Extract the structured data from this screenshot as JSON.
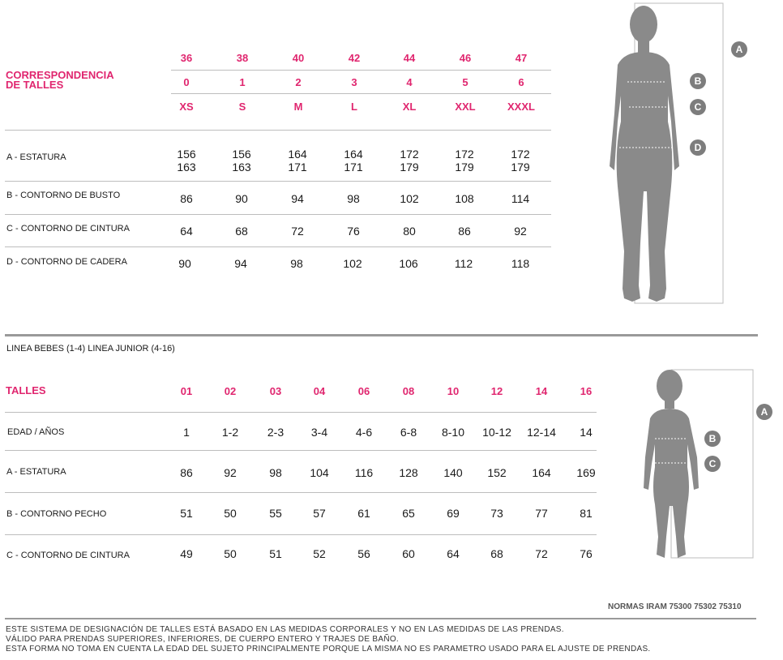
{
  "adult": {
    "title_line1": "CORRESPONDENCIA",
    "title_line2": "DE TALLES",
    "sizes_num": [
      "36",
      "38",
      "40",
      "42",
      "44",
      "46",
      "47"
    ],
    "sizes_idx": [
      "0",
      "1",
      "2",
      "3",
      "4",
      "5",
      "6"
    ],
    "sizes_letter": [
      "XS",
      "S",
      "M",
      "L",
      "XL",
      "XXL",
      "XXXL"
    ],
    "rows": [
      {
        "label": "A - ESTATURA",
        "values": [
          [
            "156",
            "163"
          ],
          [
            "156",
            "163"
          ],
          [
            "164",
            "171"
          ],
          [
            "164",
            "171"
          ],
          [
            "172",
            "179"
          ],
          [
            "172",
            "179"
          ],
          [
            "172",
            "179"
          ]
        ]
      },
      {
        "label": "B - CONTORNO DE BUSTO",
        "values": [
          "86",
          "90",
          "94",
          "98",
          "102",
          "108",
          "114"
        ]
      },
      {
        "label": "C - CONTORNO DE CINTURA",
        "values": [
          "64",
          "68",
          "72",
          "76",
          "80",
          "86",
          "92"
        ]
      },
      {
        "label": "D - CONTORNO DE CADERA",
        "values": [
          "90",
          "94",
          "98",
          "102",
          "106",
          "112",
          "118"
        ]
      }
    ],
    "badges": [
      "A",
      "B",
      "C",
      "D"
    ]
  },
  "kids": {
    "lines_caption": "LINEA BEBES (1-4)  LINEA JUNIOR (4-16)",
    "title": "TALLES",
    "sizes": [
      "01",
      "02",
      "03",
      "04",
      "06",
      "08",
      "10",
      "12",
      "14",
      "16"
    ],
    "rows": [
      {
        "label": "EDAD / AÑOS",
        "values": [
          "1",
          "1-2",
          "2-3",
          "3-4",
          "4-6",
          "6-8",
          "8-10",
          "10-12",
          "12-14",
          "14"
        ]
      },
      {
        "label": "A - ESTATURA",
        "values": [
          "86",
          "92",
          "98",
          "104",
          "116",
          "128",
          "140",
          "152",
          "164",
          "169"
        ]
      },
      {
        "label": "B - CONTORNO PECHO",
        "values": [
          "51",
          "50",
          "55",
          "57",
          "61",
          "65",
          "69",
          "73",
          "77",
          "81"
        ]
      },
      {
        "label": "C - CONTORNO DE CINTURA",
        "values": [
          "49",
          "50",
          "51",
          "52",
          "56",
          "60",
          "64",
          "68",
          "72",
          "76"
        ]
      }
    ],
    "badges": [
      "A",
      "B",
      "C"
    ]
  },
  "norms": "NORMAS IRAM 75300 75302 75310",
  "footer": [
    "ESTE SISTEMA DE DESIGNACIÓN DE TALLES ESTÁ BASADO EN LAS MEDIDAS CORPORALES Y NO EN LAS MEDIDAS DE LAS PRENDAS.",
    "VÁLIDO PARA PRENDAS SUPERIORES, INFERIORES, DE CUERPO ENTERO Y TRAJES DE BAÑO.",
    "ESTA FORMA NO TOMA EN CUENTA LA EDAD DEL SUJETO PRINCIPALMENTE PORQUE LA MISMA NO ES PARAMETRO USADO PARA EL AJUSTE DE PRENDAS."
  ]
}
